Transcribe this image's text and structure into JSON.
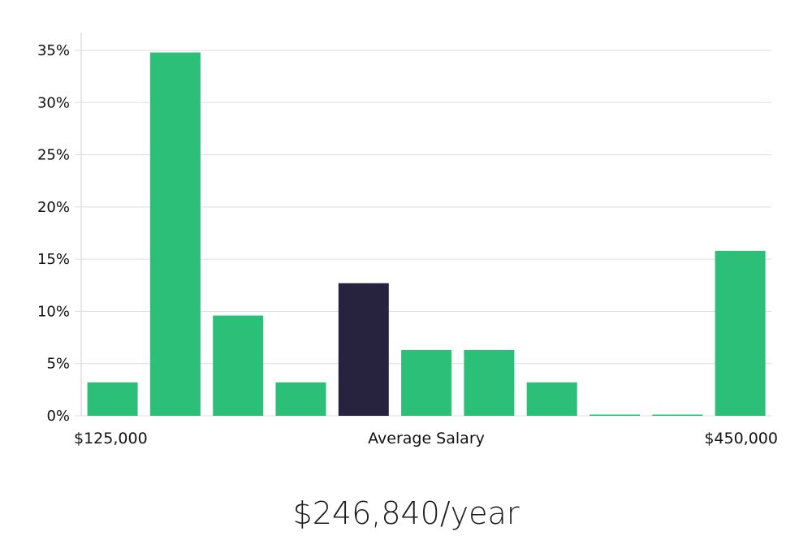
{
  "chart_data": {
    "type": "bar",
    "y_axis": {
      "min": 0,
      "max": 35,
      "ticks": [
        0,
        5,
        10,
        15,
        20,
        25,
        30,
        35
      ],
      "tick_format": "percent"
    },
    "values": [
      3.2,
      34.8,
      9.6,
      3.2,
      12.7,
      6.3,
      6.3,
      3.2,
      0,
      0,
      15.8
    ],
    "highlight_index": 4,
    "colors": {
      "bar": "#2bbf77",
      "highlight": "#27233f",
      "grid": "#dddddd"
    },
    "x_labels": {
      "left": "$125,000",
      "center": "Average Salary",
      "right": "$450,000"
    },
    "grid": true
  },
  "salary_text": "$246,840/year"
}
